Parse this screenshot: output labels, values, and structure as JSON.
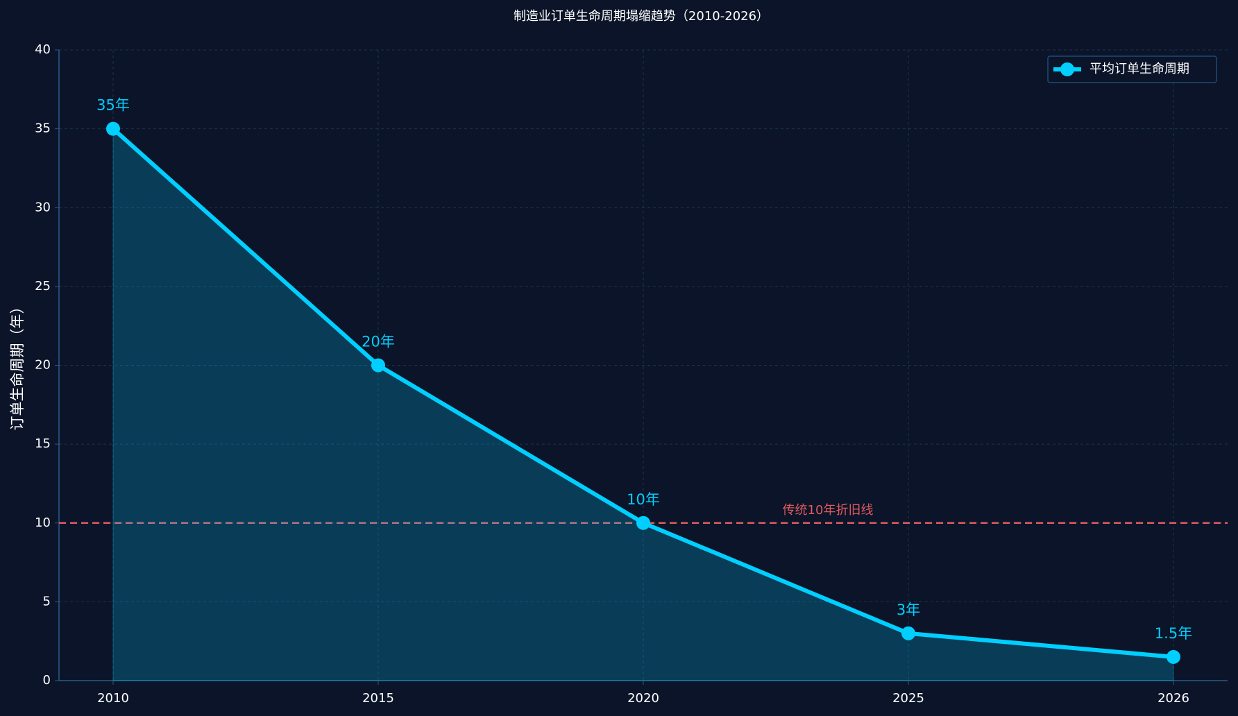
{
  "chart_data": {
    "type": "line",
    "title": "制造业订单生命周期塌缩趋势（2010-2026）",
    "y_label": "订单生命周期（年）",
    "categories": [
      "2010",
      "2015",
      "2020",
      "2025",
      "2026"
    ],
    "series": [
      {
        "name": "平均订单生命周期",
        "color": "#00cfff",
        "values": [
          35,
          20,
          10,
          3,
          1.5
        ],
        "value_labels": [
          "35年",
          "20年",
          "10年",
          "3年",
          "1.5年"
        ]
      }
    ],
    "fill_area": true,
    "ylim": [
      0,
      40
    ],
    "yticks": [
      0,
      5,
      10,
      15,
      20,
      25,
      30,
      35,
      40
    ],
    "grid": true,
    "legend": "upper right",
    "reference_line": {
      "value": 10,
      "label": "传统10年折旧线",
      "color": "#e05a60"
    }
  }
}
